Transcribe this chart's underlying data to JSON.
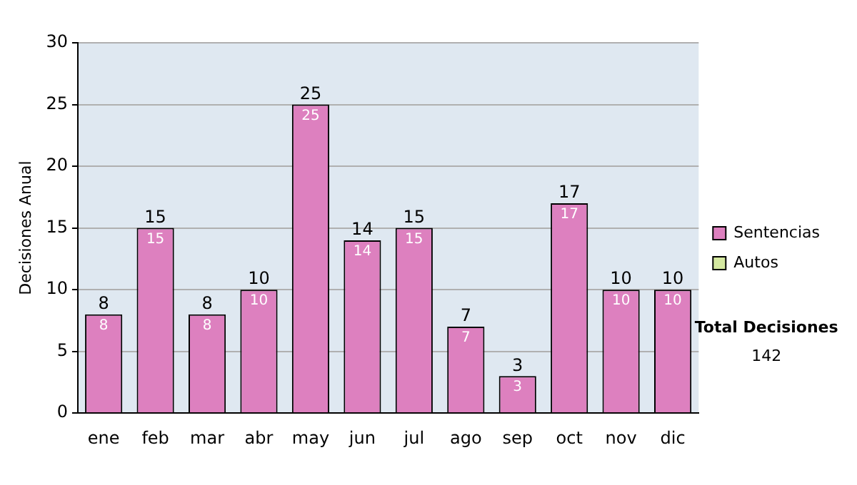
{
  "chart_data": {
    "type": "bar",
    "ylabel": "Decisiones Anual",
    "categories": [
      "ene",
      "feb",
      "mar",
      "abr",
      "may",
      "jun",
      "jul",
      "ago",
      "sep",
      "oct",
      "nov",
      "dic"
    ],
    "series": [
      {
        "name": "Sentencias",
        "color": "#dd80bf",
        "values": [
          8,
          15,
          8,
          10,
          25,
          14,
          15,
          7,
          3,
          17,
          10,
          10
        ],
        "value_labels": [
          "8",
          "15",
          "8",
          "10",
          "25",
          "14",
          "15",
          "7",
          "3",
          "17",
          "10",
          "10"
        ]
      },
      {
        "name": "Autos",
        "color": "#d4e8a0",
        "values": [
          0,
          0,
          0,
          0,
          0,
          0,
          0,
          0,
          0,
          0,
          0,
          0
        ]
      }
    ],
    "stacked": true,
    "totals": [
      "8",
      "15",
      "8",
      "10",
      "25",
      "14",
      "15",
      "7",
      "3",
      "17",
      "10",
      "10"
    ],
    "ylim": [
      0,
      30
    ],
    "yticks": [
      0,
      5,
      10,
      15,
      20,
      25,
      30
    ],
    "grid": "y",
    "legend": "right",
    "annotations": [
      "Total Decisiones",
      "142"
    ]
  }
}
